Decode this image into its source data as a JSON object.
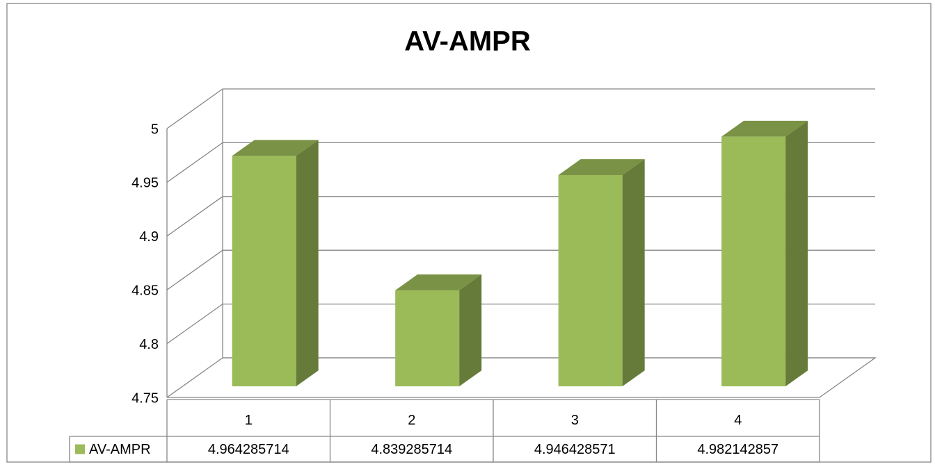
{
  "chart_data": {
    "type": "bar3d",
    "title": "AV-AMPR",
    "categories": [
      "1",
      "2",
      "3",
      "4"
    ],
    "series": [
      {
        "name": "AV-AMPR",
        "color": "#9bbb59",
        "values": [
          4.964285714,
          4.839285714,
          4.946428571,
          4.982142857
        ]
      }
    ],
    "ylim": [
      4.75,
      5
    ],
    "yticks": [
      4.75,
      4.8,
      4.85,
      4.9,
      4.95,
      5
    ],
    "grid": true,
    "data_table": true
  }
}
